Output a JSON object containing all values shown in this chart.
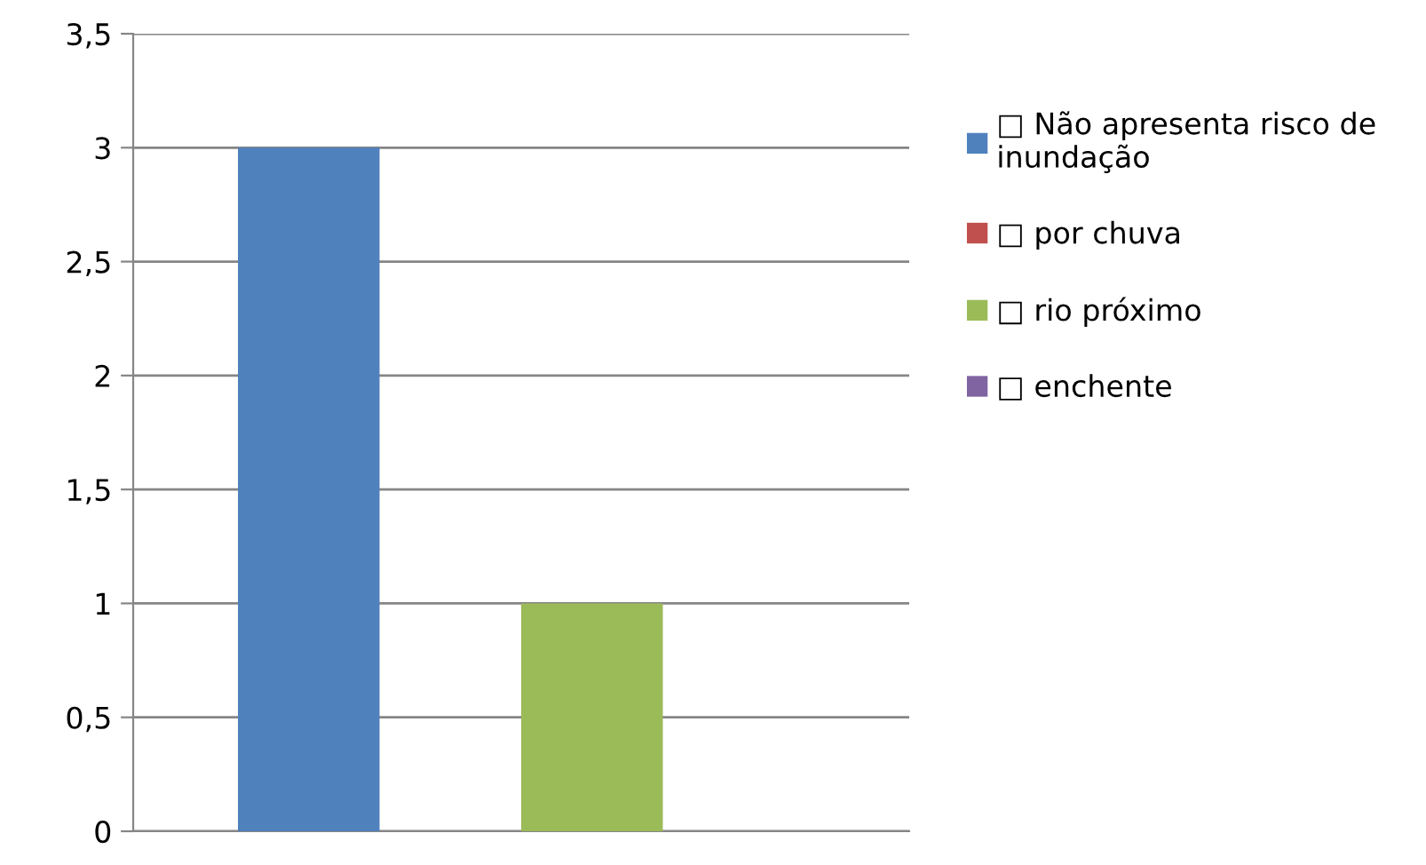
{
  "chart_data": {
    "type": "bar",
    "categories": [
      null
    ],
    "series": [
      {
        "name": "□ Não apresenta risco de inundação",
        "color": "#4f81bd",
        "values": [
          3
        ]
      },
      {
        "name": "□ por chuva",
        "color": "#c0504d",
        "values": [
          0
        ]
      },
      {
        "name": "□ rio próximo",
        "color": "#9bbb59",
        "values": [
          1
        ]
      },
      {
        "name": "□ enchente",
        "color": "#8064a2",
        "values": [
          0
        ]
      }
    ],
    "ylim": [
      0,
      3.5
    ],
    "yticks": [
      0,
      {
        "value": 0.5,
        "label": "0,5"
      },
      1,
      {
        "value": 1.5,
        "label": "1,5"
      },
      2,
      {
        "value": 2.5,
        "label": "2,5"
      },
      3,
      {
        "value": 3.5,
        "label": "3,5"
      }
    ],
    "grid": "y",
    "legend": "right"
  }
}
